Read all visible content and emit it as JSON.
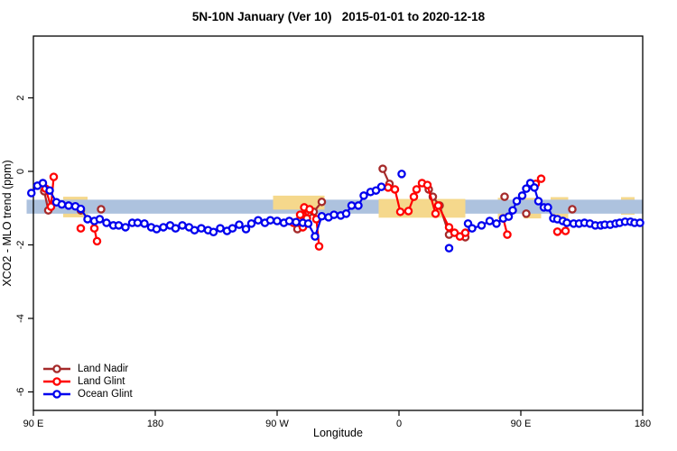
{
  "chart_data": {
    "type": "scatter",
    "title": "5N-10N January (Ver 10)   2015-01-01 to 2020-12-18",
    "xlabel": "Longitude",
    "ylabel": "XCO2 - MLO trend (ppm)",
    "xlim": [
      85,
      540
    ],
    "ylim": [
      -6.5,
      3.7
    ],
    "grid": false,
    "x_ticks": [
      {
        "lon": 90,
        "label": "90 E"
      },
      {
        "lon": 180,
        "label": "180"
      },
      {
        "lon": 270,
        "label": "90 W"
      },
      {
        "lon": 360,
        "label": "0"
      },
      {
        "lon": 450,
        "label": "90 E"
      },
      {
        "lon": 540,
        "label": "180"
      }
    ],
    "y_ticks": [
      {
        "value": 2,
        "label": "2"
      },
      {
        "value": 0,
        "label": "0"
      },
      {
        "value": -2,
        "label": "-2"
      },
      {
        "value": -4,
        "label": "-4"
      },
      {
        "value": -6,
        "label": "-6"
      }
    ],
    "reference_bands": {
      "blue_band": {
        "color": "#ADC2DE",
        "lon": [
          85,
          540
        ],
        "ppm": [
          -0.77,
          -1.15
        ]
      },
      "yellow_patches": [
        {
          "lon": [
            112,
            130
          ],
          "ppm": [
            -0.69,
            -1.25
          ],
          "layer": "behind"
        },
        {
          "lon": [
            267,
            305
          ],
          "ppm": [
            -0.66,
            -1.04
          ],
          "layer": "front"
        },
        {
          "lon": [
            345,
            409
          ],
          "ppm": [
            -0.75,
            -1.26
          ],
          "layer": "front"
        },
        {
          "lon": [
            433,
            440
          ],
          "ppm": [
            -0.72,
            -1.3
          ],
          "layer": "behind"
        },
        {
          "lon": [
            452,
            465
          ],
          "ppm": [
            -0.72,
            -1.28
          ],
          "layer": "behind"
        },
        {
          "lon": [
            472,
            485
          ],
          "ppm": [
            -0.7,
            -1.28
          ],
          "layer": "behind"
        },
        {
          "lon": [
            524,
            534
          ],
          "ppm": [
            -0.7,
            -1.18
          ],
          "layer": "behind"
        }
      ],
      "yellow_color": "#F5D88C"
    },
    "series": [
      {
        "name": "Land Nadir",
        "color": "#A52A2A",
        "segments": [
          [
            [
              98,
              -0.54
            ],
            [
              101,
              -1.06
            ]
          ],
          [
            [
              125,
              -1.06
            ]
          ],
          [
            [
              140,
              -1.03
            ]
          ],
          [
            [
              285,
              -1.57
            ],
            [
              297,
              -1.1
            ],
            [
              303,
              -0.83
            ]
          ],
          [
            [
              348,
              0.07
            ],
            [
              353,
              -0.34
            ]
          ],
          [
            [
              382,
              -0.49
            ],
            [
              385,
              -0.69
            ],
            [
              390,
              -0.93
            ],
            [
              397,
              -1.72
            ],
            [
              409,
              -1.79
            ]
          ],
          [
            [
              438,
              -0.69
            ]
          ],
          [
            [
              454,
              -1.15
            ]
          ],
          [
            [
              488,
              -1.03
            ]
          ]
        ]
      },
      {
        "name": "Land Glint",
        "color": "#FF0000",
        "segments": [
          [
            [
              99,
              -0.47
            ],
            [
              103,
              -0.96
            ],
            [
              105,
              -0.15
            ]
          ],
          [
            [
              125,
              -1.55
            ]
          ],
          [
            [
              135,
              -1.55
            ],
            [
              137,
              -1.9
            ]
          ],
          [
            [
              282,
              -1.4
            ],
            [
              287,
              -1.18
            ],
            [
              289,
              -1.52
            ],
            [
              290,
              -0.98
            ],
            [
              292,
              -1.28
            ],
            [
              294,
              -1.03
            ],
            [
              299,
              -1.3
            ],
            [
              301,
              -2.04
            ]
          ],
          [
            [
              352,
              -0.44
            ],
            [
              357,
              -0.49
            ],
            [
              361,
              -1.1
            ],
            [
              367,
              -1.08
            ],
            [
              371,
              -0.69
            ],
            [
              373,
              -0.49
            ],
            [
              377,
              -0.32
            ],
            [
              381,
              -0.37
            ],
            [
              387,
              -1.15
            ],
            [
              389,
              -0.93
            ],
            [
              397,
              -1.52
            ],
            [
              401,
              -1.67
            ],
            [
              405,
              -1.77
            ],
            [
              409,
              -1.67
            ]
          ],
          [
            [
              437,
              -1.28
            ],
            [
              440,
              -1.72
            ]
          ],
          [
            [
              461,
              -0.34
            ],
            [
              465,
              -0.2
            ]
          ],
          [
            [
              477,
              -1.64
            ]
          ],
          [
            [
              483,
              -1.62
            ]
          ]
        ]
      },
      {
        "name": "Ocean Glint",
        "color": "#0000EE",
        "segments": [
          [
            [
              88.5,
              -0.59
            ],
            [
              93,
              -0.39
            ],
            [
              97,
              -0.32
            ],
            [
              102,
              -0.52
            ],
            [
              107,
              -0.84
            ],
            [
              111,
              -0.9
            ],
            [
              116,
              -0.93
            ],
            [
              121,
              -0.95
            ],
            [
              125,
              -1.02
            ],
            [
              130,
              -1.3
            ],
            [
              135,
              -1.35
            ],
            [
              139,
              -1.3
            ],
            [
              144,
              -1.4
            ],
            [
              149,
              -1.47
            ],
            [
              153,
              -1.47
            ],
            [
              158,
              -1.52
            ],
            [
              163,
              -1.4
            ],
            [
              167,
              -1.4
            ],
            [
              172,
              -1.42
            ],
            [
              177,
              -1.52
            ],
            [
              181,
              -1.57
            ],
            [
              186,
              -1.52
            ],
            [
              191,
              -1.47
            ],
            [
              195,
              -1.55
            ],
            [
              200,
              -1.47
            ],
            [
              205,
              -1.52
            ],
            [
              209,
              -1.6
            ],
            [
              214,
              -1.55
            ],
            [
              219,
              -1.6
            ],
            [
              223,
              -1.65
            ],
            [
              228,
              -1.55
            ],
            [
              233,
              -1.62
            ],
            [
              237,
              -1.55
            ],
            [
              242,
              -1.45
            ],
            [
              247,
              -1.57
            ],
            [
              251,
              -1.42
            ],
            [
              256,
              -1.33
            ],
            [
              261,
              -1.4
            ],
            [
              265,
              -1.33
            ],
            [
              270,
              -1.35
            ],
            [
              275,
              -1.4
            ],
            [
              279,
              -1.35
            ],
            [
              284,
              -1.38
            ],
            [
              289,
              -1.4
            ],
            [
              293,
              -1.42
            ],
            [
              298,
              -1.77
            ],
            [
              303,
              -1.22
            ],
            [
              308,
              -1.25
            ],
            [
              312,
              -1.18
            ],
            [
              317,
              -1.2
            ],
            [
              321,
              -1.15
            ],
            [
              325,
              -0.93
            ],
            [
              330,
              -0.93
            ],
            [
              334,
              -0.66
            ],
            [
              339,
              -0.56
            ],
            [
              343,
              -0.52
            ],
            [
              347,
              -0.42
            ]
          ],
          [
            [
              362,
              -0.07
            ]
          ],
          [
            [
              397,
              -2.09
            ]
          ],
          [
            [
              411,
              -1.42
            ],
            [
              414,
              -1.55
            ],
            [
              421,
              -1.47
            ],
            [
              427,
              -1.35
            ],
            [
              432,
              -1.42
            ],
            [
              437,
              -1.28
            ],
            [
              441,
              -1.23
            ],
            [
              444,
              -1.06
            ],
            [
              447,
              -0.81
            ],
            [
              451,
              -0.66
            ],
            [
              454,
              -0.47
            ],
            [
              457,
              -0.32
            ],
            [
              460,
              -0.44
            ],
            [
              463,
              -0.81
            ],
            [
              467,
              -0.98
            ],
            [
              470,
              -0.98
            ],
            [
              474,
              -1.28
            ],
            [
              477,
              -1.3
            ],
            [
              481,
              -1.35
            ],
            [
              484,
              -1.4
            ],
            [
              489,
              -1.42
            ],
            [
              493,
              -1.42
            ],
            [
              497,
              -1.4
            ],
            [
              501,
              -1.42
            ],
            [
              505,
              -1.47
            ],
            [
              509,
              -1.47
            ],
            [
              512,
              -1.45
            ],
            [
              516,
              -1.45
            ],
            [
              520,
              -1.42
            ],
            [
              523,
              -1.4
            ],
            [
              527,
              -1.37
            ],
            [
              531,
              -1.37
            ],
            [
              534,
              -1.4
            ],
            [
              538,
              -1.4
            ]
          ]
        ]
      }
    ]
  },
  "legend": {
    "items": [
      {
        "label": "Land Nadir",
        "color": "#A52A2A"
      },
      {
        "label": "Land Glint",
        "color": "#FF0000"
      },
      {
        "label": "Ocean Glint",
        "color": "#0000EE"
      }
    ]
  }
}
